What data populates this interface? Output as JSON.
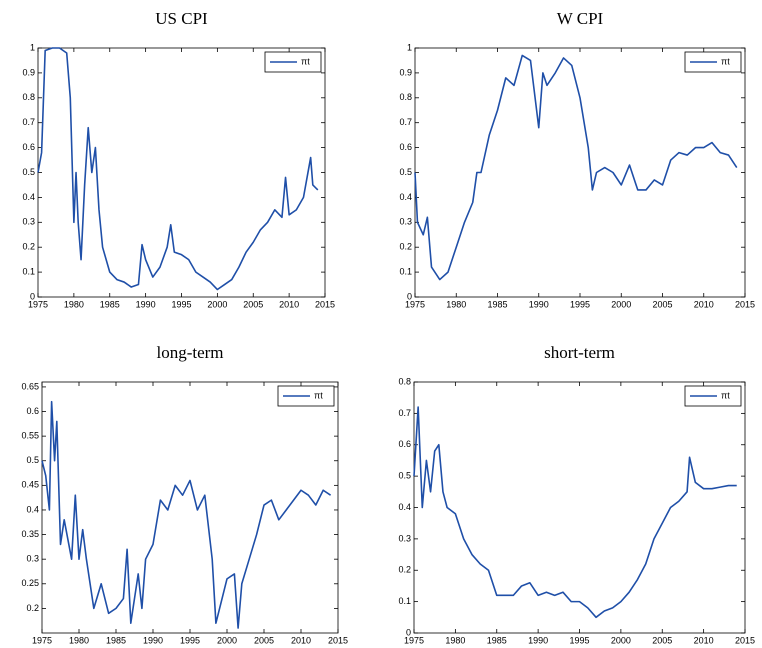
{
  "chart_data": [
    {
      "type": "line",
      "title": "US CPI",
      "legend": "upper right",
      "x": [
        1975,
        1975.5,
        1976,
        1977,
        1978,
        1979,
        1979.5,
        1980,
        1980.3,
        1980.6,
        1981,
        1981.5,
        1982,
        1982.5,
        1983,
        1983.5,
        1984,
        1985,
        1986,
        1987,
        1988,
        1989,
        1989.5,
        1990,
        1991,
        1992,
        1993,
        1993.5,
        1994,
        1995,
        1996,
        1997,
        1998,
        1999,
        2000,
        2001,
        2002,
        2003,
        2004,
        2005,
        2006,
        2007,
        2008,
        2009,
        2009.5,
        2010,
        2011,
        2012,
        2013,
        2013.3,
        2014
      ],
      "series": [
        {
          "name": "πt",
          "color": "#1f4fa8",
          "values": [
            0.5,
            0.58,
            0.99,
            1,
            1,
            0.98,
            0.8,
            0.3,
            0.5,
            0.3,
            0.15,
            0.45,
            0.68,
            0.5,
            0.6,
            0.35,
            0.2,
            0.1,
            0.07,
            0.06,
            0.04,
            0.05,
            0.21,
            0.15,
            0.08,
            0.12,
            0.2,
            0.29,
            0.18,
            0.17,
            0.15,
            0.1,
            0.08,
            0.06,
            0.03,
            0.05,
            0.07,
            0.12,
            0.18,
            0.22,
            0.27,
            0.3,
            0.35,
            0.32,
            0.48,
            0.33,
            0.35,
            0.4,
            0.56,
            0.45,
            0.43
          ]
        }
      ],
      "xlim": [
        1975,
        2015
      ],
      "xticks": [
        1975,
        1980,
        1985,
        1990,
        1995,
        2000,
        2005,
        2010,
        2015
      ],
      "ylim": [
        0,
        1
      ],
      "yticks": [
        0,
        0.1,
        0.2,
        0.3,
        0.4,
        0.5,
        0.6,
        0.7,
        0.8,
        0.9,
        1
      ]
    },
    {
      "type": "line",
      "title": "W CPI",
      "legend": "upper right",
      "x": [
        1975,
        1975.3,
        1976,
        1976.5,
        1977,
        1978,
        1979,
        1980,
        1981,
        1982,
        1982.5,
        1983,
        1984,
        1985,
        1986,
        1987,
        1988,
        1989,
        1990,
        1990.5,
        1991,
        1992,
        1993,
        1994,
        1995,
        1996,
        1996.5,
        1997,
        1998,
        1999,
        2000,
        2001,
        2002,
        2003,
        2004,
        2005,
        2006,
        2007,
        2008,
        2009,
        2010,
        2011,
        2012,
        2013,
        2014
      ],
      "series": [
        {
          "name": "πt",
          "color": "#1f4fa8",
          "values": [
            0.5,
            0.3,
            0.25,
            0.32,
            0.12,
            0.07,
            0.1,
            0.2,
            0.3,
            0.38,
            0.5,
            0.5,
            0.65,
            0.75,
            0.88,
            0.85,
            0.97,
            0.95,
            0.68,
            0.9,
            0.85,
            0.9,
            0.96,
            0.93,
            0.8,
            0.6,
            0.43,
            0.5,
            0.52,
            0.5,
            0.45,
            0.53,
            0.43,
            0.43,
            0.47,
            0.45,
            0.55,
            0.58,
            0.57,
            0.6,
            0.6,
            0.62,
            0.58,
            0.57,
            0.52
          ]
        }
      ],
      "xlim": [
        1975,
        2015
      ],
      "xticks": [
        1975,
        1980,
        1985,
        1990,
        1995,
        2000,
        2005,
        2010,
        2015
      ],
      "ylim": [
        0,
        1
      ],
      "yticks": [
        0,
        0.1,
        0.2,
        0.3,
        0.4,
        0.5,
        0.6,
        0.7,
        0.8,
        0.9,
        1
      ]
    },
    {
      "type": "line",
      "title": "long-term",
      "legend": "upper right",
      "x": [
        1975,
        1975.5,
        1976,
        1976.3,
        1976.7,
        1977,
        1977.5,
        1978,
        1979,
        1979.5,
        1980,
        1980.5,
        1981,
        1982,
        1983,
        1984,
        1985,
        1986,
        1986.5,
        1987,
        1988,
        1988.5,
        1989,
        1990,
        1991,
        1992,
        1993,
        1994,
        1995,
        1996,
        1997,
        1998,
        1998.5,
        1999,
        2000,
        2001,
        2001.5,
        2002,
        2003,
        2004,
        2005,
        2006,
        2007,
        2008,
        2009,
        2010,
        2011,
        2012,
        2013,
        2014
      ],
      "series": [
        {
          "name": "πt",
          "color": "#1f4fa8",
          "values": [
            0.5,
            0.47,
            0.4,
            0.62,
            0.5,
            0.58,
            0.33,
            0.38,
            0.3,
            0.43,
            0.3,
            0.36,
            0.3,
            0.2,
            0.25,
            0.19,
            0.2,
            0.22,
            0.32,
            0.17,
            0.27,
            0.2,
            0.3,
            0.33,
            0.42,
            0.4,
            0.45,
            0.43,
            0.46,
            0.4,
            0.43,
            0.3,
            0.17,
            0.2,
            0.26,
            0.27,
            0.16,
            0.25,
            0.3,
            0.35,
            0.41,
            0.42,
            0.38,
            0.4,
            0.42,
            0.44,
            0.43,
            0.41,
            0.44,
            0.43
          ]
        }
      ],
      "xlim": [
        1975,
        2015
      ],
      "xticks": [
        1975,
        1980,
        1985,
        1990,
        1995,
        2000,
        2005,
        2010,
        2015
      ],
      "ylim": [
        0.15,
        0.66
      ],
      "yticks": [
        0.2,
        0.25,
        0.3,
        0.35,
        0.4,
        0.45,
        0.5,
        0.55,
        0.6,
        0.65
      ]
    },
    {
      "type": "line",
      "title": "short-term",
      "legend": "upper right",
      "x": [
        1975,
        1975.5,
        1976,
        1976.5,
        1977,
        1977.5,
        1978,
        1978.5,
        1979,
        1980,
        1981,
        1982,
        1983,
        1984,
        1985,
        1986,
        1987,
        1988,
        1989,
        1990,
        1991,
        1992,
        1993,
        1994,
        1995,
        1996,
        1997,
        1998,
        1999,
        2000,
        2001,
        2002,
        2003,
        2004,
        2005,
        2006,
        2007,
        2008,
        2008.3,
        2009,
        2010,
        2011,
        2012,
        2013,
        2014
      ],
      "series": [
        {
          "name": "πt",
          "color": "#1f4fa8",
          "values": [
            0.5,
            0.72,
            0.4,
            0.55,
            0.45,
            0.58,
            0.6,
            0.45,
            0.4,
            0.38,
            0.3,
            0.25,
            0.22,
            0.2,
            0.12,
            0.12,
            0.12,
            0.15,
            0.16,
            0.12,
            0.13,
            0.12,
            0.13,
            0.1,
            0.1,
            0.08,
            0.05,
            0.07,
            0.08,
            0.1,
            0.13,
            0.17,
            0.22,
            0.3,
            0.35,
            0.4,
            0.42,
            0.45,
            0.56,
            0.48,
            0.46,
            0.46,
            0.465,
            0.47,
            0.47
          ]
        }
      ],
      "xlim": [
        1975,
        2015
      ],
      "xticks": [
        1975,
        1980,
        1985,
        1990,
        1995,
        2000,
        2005,
        2010,
        2015
      ],
      "ylim": [
        0,
        0.8
      ],
      "yticks": [
        0,
        0.1,
        0.2,
        0.3,
        0.4,
        0.5,
        0.6,
        0.7,
        0.8
      ]
    }
  ]
}
